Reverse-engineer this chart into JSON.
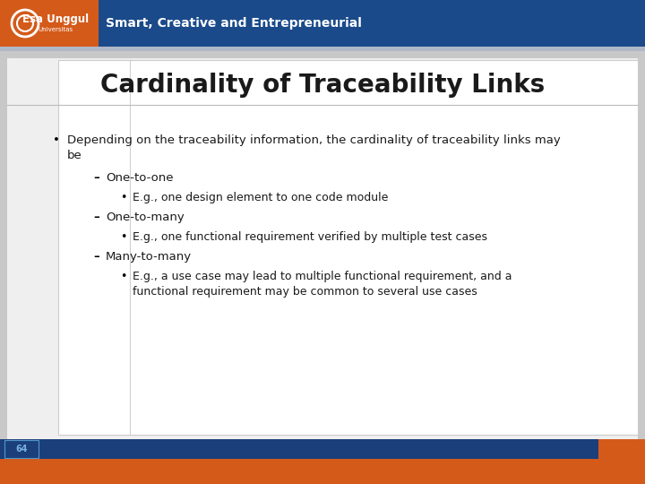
{
  "title": "Cardinality of Traceability Links",
  "header_bg_color": "#1a4a8a",
  "header_text": "Smart, Creative and Entrepreneurial",
  "header_text_color": "#ffffff",
  "logo_bg_color": "#d45a1a",
  "slide_bg_color": "#c8c8c8",
  "footer_bg_color": "#1a3f7a",
  "footer_orange_color": "#d45a1a",
  "footer_number": "64",
  "footer_number_color": "#7ab0e0",
  "title_color": "#1a1a1a",
  "title_fontsize": 20,
  "bullet_color": "#1a1a1a"
}
